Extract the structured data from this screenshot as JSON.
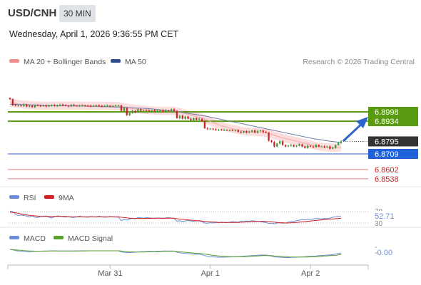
{
  "header": {
    "symbol": "USD/CNH",
    "timeframe": "30 MIN",
    "datetime": "Wednesday, April 1, 2026 9:36:55 PM CET"
  },
  "legend": {
    "ma20": "MA 20 + Bollinger Bands",
    "ma50": "MA 50",
    "credit": "Research © 2026 Trading Central"
  },
  "colors": {
    "bull": "#3a9a3a",
    "bear": "#c8262a",
    "bollinger": "#f9d3d3",
    "ma20": "#f08c8c",
    "ma50": "#5a6f9c",
    "resistance": "#5a9a10",
    "pivot": "#2060d8",
    "support": "#e07f7f",
    "rsi": "#6b8cd6",
    "rsi_ma": "#d02020",
    "macd": "#6b8cd6",
    "macd_signal": "#5aa02a"
  },
  "chart_data": [
    {
      "type": "candlestick",
      "ylim": [
        6.845,
        6.911
      ],
      "x_ticks": [
        "Mar 31",
        "Apr 1",
        "Apr 2"
      ],
      "levels": [
        {
          "label": "6.8998",
          "value": 6.8998,
          "kind": "resistance"
        },
        {
          "label": "6.8934",
          "value": 6.8934,
          "kind": "resistance"
        },
        {
          "label": "6.8795",
          "value": 6.8795,
          "kind": "last"
        },
        {
          "label": "6.8709",
          "value": 6.8709,
          "kind": "pivot"
        },
        {
          "label": "6.8602",
          "value": 6.8602,
          "kind": "support"
        },
        {
          "label": "6.8538",
          "value": 6.8538,
          "kind": "support"
        }
      ],
      "close": [
        6.9085,
        6.9045,
        6.904,
        6.9042,
        6.9038,
        6.905,
        6.9035,
        6.904,
        6.903,
        6.9045,
        6.904,
        6.9038,
        6.9042,
        6.9035,
        6.904,
        6.9045,
        6.9038,
        6.904,
        6.9048,
        6.9042,
        6.904,
        6.9035,
        6.9045,
        6.904,
        6.9038,
        6.904,
        6.9042,
        6.904,
        6.9038,
        6.9036,
        6.904,
        6.9042,
        6.904,
        6.9035,
        6.9038,
        6.904,
        6.9036,
        6.9038,
        6.904,
        6.9042,
        6.9005,
        6.9025,
        6.8975,
        6.899,
        6.9005,
        6.8995,
        6.9015,
        6.9005,
        6.901,
        6.9008,
        6.9005,
        6.901,
        6.9,
        6.9005,
        6.901,
        6.9,
        6.9008,
        6.9005,
        6.9015,
        6.9005,
        6.8955,
        6.897,
        6.895,
        6.8965,
        6.895,
        6.894,
        6.8955,
        6.8945,
        6.895,
        6.8935,
        6.8885,
        6.888,
        6.8882,
        6.8878,
        6.8872,
        6.8876,
        6.8872,
        6.8874,
        6.887,
        6.8872,
        6.8868,
        6.8872,
        6.886,
        6.8855,
        6.8865,
        6.8855,
        6.886,
        6.887,
        6.8855,
        6.8865,
        6.887,
        6.886,
        6.8855,
        6.88,
        6.879,
        6.876,
        6.878,
        6.8795,
        6.877,
        6.876,
        6.8765,
        6.877,
        6.876,
        6.8765,
        6.8775,
        6.876,
        6.875,
        6.8765,
        6.876,
        6.8755,
        6.877,
        6.876,
        6.876,
        6.8755,
        6.876,
        6.8745,
        6.875,
        6.877,
        6.8785,
        6.8795
      ],
      "ma20": [
        6.9062,
        6.9058,
        6.9055,
        6.9052,
        6.905,
        6.9048,
        6.9046,
        6.9044,
        6.9043,
        6.9042,
        6.9042,
        6.9041,
        6.9041,
        6.904,
        6.904,
        6.9041,
        6.9041,
        6.9041,
        6.9041,
        6.9041,
        6.9041,
        6.9041,
        6.9041,
        6.9041,
        6.9041,
        6.9041,
        6.9041,
        6.904,
        6.904,
        6.904,
        6.904,
        6.904,
        6.904,
        6.9039,
        6.9039,
        6.9039,
        6.9039,
        6.9038,
        6.9038,
        6.9038,
        6.9035,
        6.9031,
        6.9027,
        6.9024,
        6.9021,
        6.9018,
        6.9017,
        6.9015,
        6.9013,
        6.9011,
        6.9009,
        6.9008,
        6.9007,
        6.9006,
        6.9005,
        6.9004,
        6.9004,
        6.9004,
        6.9005,
        6.9005,
        6.9001,
        6.8996,
        6.8991,
        6.8986,
        6.8981,
        6.8976,
        6.8972,
        6.8967,
        6.8962,
        6.8957,
        6.8949,
        6.8941,
        6.8933,
        6.8925,
        6.8917,
        6.8909,
        6.8903,
        6.8897,
        6.8891,
        6.8886,
        6.888,
        6.8877,
        6.8873,
        6.8869,
        6.8866,
        6.8863,
        6.8862,
        6.8861,
        6.886,
        6.8859,
        6.8858,
        6.8856,
        6.8854,
        6.8849,
        6.8844,
        6.8837,
        6.8831,
        6.8826,
        6.882,
        6.8815,
        6.881,
        6.8806,
        6.8801,
        6.8796,
        6.8792,
        6.8787,
        6.8782,
        6.8777,
        6.8773,
        6.8768,
        6.8763,
        6.8759,
        6.8757,
        6.8755,
        6.8754,
        6.8753,
        6.8752,
        6.8752,
        6.8753,
        6.8755
      ],
      "ma50": [
        6.905,
        6.905,
        6.9049,
        6.9049,
        6.9048,
        6.9048,
        6.9047,
        6.9047,
        6.9046,
        6.9046,
        6.9045,
        6.9045,
        6.9044,
        6.9044,
        6.9043,
        6.9043,
        6.9042,
        6.9042,
        6.9041,
        6.9041,
        6.904,
        6.904,
        6.9039,
        6.9039,
        6.9038,
        6.9038,
        6.9037,
        6.9037,
        6.9036,
        6.9036,
        6.9035,
        6.9035,
        6.9034,
        6.9034,
        6.9033,
        6.9033,
        6.9032,
        6.9032,
        6.9031,
        6.9031,
        6.903,
        6.9029,
        6.9028,
        6.9027,
        6.9026,
        6.9025,
        6.9024,
        6.9023,
        6.9022,
        6.9021,
        6.902,
        6.9018,
        6.9016,
        6.9014,
        6.9012,
        6.901,
        6.9008,
        6.9006,
        6.9004,
        6.9002,
        6.9,
        6.8997,
        6.8994,
        6.8991,
        6.8988,
        6.8985,
        6.8982,
        6.8979,
        6.8976,
        6.8973,
        6.897,
        6.8966,
        6.8962,
        6.8958,
        6.8954,
        6.895,
        6.8946,
        6.8942,
        6.8938,
        6.8934,
        6.893,
        6.8926,
        6.8922,
        6.8918,
        6.8914,
        6.891,
        6.8906,
        6.8902,
        6.8898,
        6.8894,
        6.889,
        6.8886,
        6.8882,
        6.8878,
        6.8874,
        6.887,
        6.8866,
        6.8862,
        6.8858,
        6.8854,
        6.885,
        6.8846,
        6.8842,
        6.8838,
        6.8834,
        6.883,
        6.8826,
        6.8822,
        6.8818,
        6.8814,
        6.8811,
        6.8808,
        6.8805,
        6.8802,
        6.8799,
        6.8796,
        6.8794,
        6.8792,
        6.879,
        6.8789
      ]
    },
    {
      "type": "line",
      "title": "RSI",
      "series": [
        {
          "name": "RSI",
          "color": "#6b8cd6"
        },
        {
          "name": "9MA",
          "color": "#d02020"
        }
      ],
      "y_ticks": [
        70,
        30
      ],
      "last_value": "52.71",
      "rsi": [
        72,
        70,
        60,
        56,
        58,
        57,
        54,
        52,
        55,
        50,
        49,
        53,
        54,
        55,
        50,
        48,
        52,
        55,
        54,
        52,
        51,
        53,
        50,
        49,
        52,
        54,
        52,
        51,
        50,
        53,
        52,
        51,
        54,
        52,
        50,
        51,
        53,
        52,
        51,
        50,
        38,
        42,
        40,
        44,
        47,
        45,
        49,
        48,
        47,
        49,
        48,
        47,
        46,
        48,
        47,
        46,
        48,
        49,
        47,
        46,
        36,
        38,
        35,
        37,
        39,
        37,
        36,
        38,
        37,
        35,
        30,
        29,
        31,
        30,
        32,
        31,
        33,
        32,
        31,
        33,
        35,
        34,
        33,
        36,
        35,
        37,
        36,
        38,
        37,
        36,
        35,
        33,
        32,
        28,
        29,
        27,
        30,
        31,
        29,
        30,
        33,
        35,
        36,
        38,
        40,
        42,
        41,
        43,
        42,
        44,
        46,
        45,
        44,
        46,
        45,
        47,
        50,
        52,
        53,
        52.71
      ],
      "ma9": [
        68,
        67,
        66,
        64,
        62,
        60,
        58,
        57,
        56,
        55,
        54,
        53,
        53,
        53,
        53,
        53,
        53,
        53,
        53,
        53,
        53,
        52,
        52,
        52,
        52,
        52,
        52,
        52,
        52,
        52,
        52,
        52,
        52,
        52,
        52,
        52,
        52,
        52,
        52,
        52,
        50,
        49,
        48,
        47,
        46,
        46,
        46,
        46,
        46,
        46,
        46,
        47,
        47,
        47,
        47,
        47,
        47,
        47,
        47,
        47,
        45,
        44,
        43,
        42,
        41,
        40,
        39,
        38,
        38,
        37,
        36,
        35,
        34,
        33,
        33,
        32,
        32,
        32,
        32,
        32,
        32,
        32,
        32,
        33,
        33,
        34,
        34,
        35,
        35,
        36,
        36,
        36,
        35,
        35,
        34,
        33,
        32,
        31,
        31,
        30,
        30,
        31,
        31,
        32,
        33,
        34,
        35,
        36,
        37,
        38,
        39,
        40,
        41,
        42,
        43,
        44,
        44,
        45,
        46,
        47
      ]
    },
    {
      "type": "line",
      "title": "MACD",
      "series": [
        {
          "name": "MACD",
          "color": "#6b8cd6"
        },
        {
          "name": "MACD Signal",
          "color": "#5aa02a"
        }
      ],
      "last_value": "-0.00",
      "macd": [
        0.0012,
        0.0008,
        0.0002,
        -0.0001,
        -0.0003,
        -0.0004,
        -0.0006,
        -0.0007,
        -0.0006,
        -0.0005,
        -0.0004,
        -0.0003,
        -0.0002,
        -0.0001,
        -0.0001,
        0.0,
        0.0,
        -0.0001,
        -0.0001,
        -0.0002,
        -0.0002,
        -0.0002,
        -0.0001,
        -0.0001,
        -0.0001,
        0.0,
        0.0,
        0.0,
        0.0,
        0.0,
        0.0,
        0.0,
        0.0,
        0.0,
        0.0,
        0.0,
        0.0,
        0.0,
        0.0,
        0.0,
        -0.001,
        -0.0012,
        -0.0016,
        -0.0015,
        -0.0013,
        -0.0012,
        -0.001,
        -0.0008,
        -0.0007,
        -0.0006,
        -0.0005,
        -0.0004,
        -0.0004,
        -0.0003,
        -0.0003,
        -0.0002,
        -0.0002,
        -0.0002,
        -0.0001,
        -0.0001,
        -0.0012,
        -0.0016,
        -0.002,
        -0.0022,
        -0.0024,
        -0.0026,
        -0.0027,
        -0.0028,
        -0.0029,
        -0.0031,
        -0.004,
        -0.0046,
        -0.0049,
        -0.0051,
        -0.0053,
        -0.0054,
        -0.0054,
        -0.0054,
        -0.0053,
        -0.0052,
        -0.0051,
        -0.0049,
        -0.0048,
        -0.0047,
        -0.0045,
        -0.0044,
        -0.0042,
        -0.004,
        -0.0039,
        -0.0037,
        -0.0036,
        -0.0036,
        -0.0036,
        -0.0041,
        -0.0045,
        -0.005,
        -0.0053,
        -0.0054,
        -0.0056,
        -0.0057,
        -0.0057,
        -0.0056,
        -0.0055,
        -0.0054,
        -0.0052,
        -0.0051,
        -0.005,
        -0.0048,
        -0.0046,
        -0.0045,
        -0.0043,
        -0.0041,
        -0.0039,
        -0.0038,
        -0.0036,
        -0.0034,
        -0.0031,
        -0.0027,
        -0.0022,
        -0.0018
      ],
      "signal": [
        0.001,
        0.0009,
        0.0008,
        0.0006,
        0.0004,
        0.0002,
        0.0,
        -0.0001,
        -0.0002,
        -0.0003,
        -0.0003,
        -0.0003,
        -0.0003,
        -0.0003,
        -0.0002,
        -0.0002,
        -0.0002,
        -0.0001,
        -0.0001,
        -0.0001,
        -0.0001,
        -0.0001,
        -0.0001,
        -0.0001,
        -0.0001,
        -0.0001,
        -0.0001,
        -0.0001,
        0.0,
        0.0,
        0.0,
        0.0,
        0.0,
        0.0,
        0.0,
        0.0,
        0.0,
        0.0,
        0.0,
        0.0,
        -0.0002,
        -0.0004,
        -0.0006,
        -0.0008,
        -0.0009,
        -0.001,
        -0.001,
        -0.001,
        -0.001,
        -0.0009,
        -0.0009,
        -0.0008,
        -0.0007,
        -0.0007,
        -0.0006,
        -0.0005,
        -0.0005,
        -0.0004,
        -0.0004,
        -0.0003,
        -0.0005,
        -0.0007,
        -0.001,
        -0.0012,
        -0.0015,
        -0.0017,
        -0.0019,
        -0.0021,
        -0.0023,
        -0.0024,
        -0.0027,
        -0.0031,
        -0.0034,
        -0.0038,
        -0.0041,
        -0.0043,
        -0.0045,
        -0.0047,
        -0.0048,
        -0.0049,
        -0.005,
        -0.005,
        -0.005,
        -0.0049,
        -0.0049,
        -0.0048,
        -0.0047,
        -0.0046,
        -0.0045,
        -0.0043,
        -0.0042,
        -0.0041,
        -0.004,
        -0.004,
        -0.0041,
        -0.0043,
        -0.0045,
        -0.0046,
        -0.0048,
        -0.005,
        -0.0051,
        -0.0052,
        -0.0053,
        -0.0053,
        -0.0053,
        -0.0053,
        -0.0053,
        -0.0052,
        -0.0051,
        -0.005,
        -0.0049,
        -0.0048,
        -0.0046,
        -0.0044,
        -0.0043,
        -0.0041,
        -0.0039,
        -0.0037,
        -0.0034,
        -0.0031
      ]
    }
  ]
}
